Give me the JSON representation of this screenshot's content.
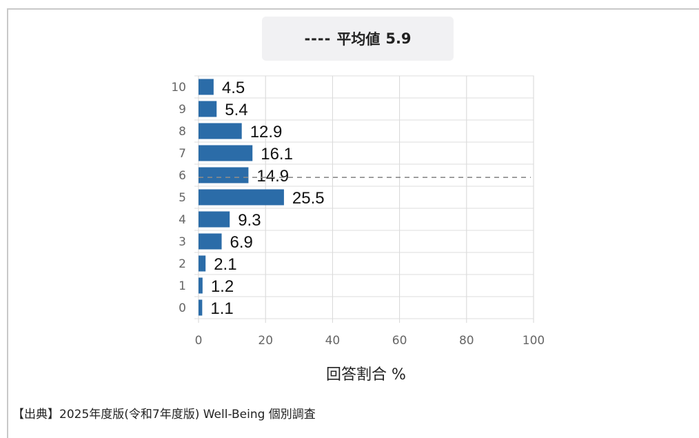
{
  "legend": {
    "dash": "----",
    "label": "平均値",
    "value": "5.9"
  },
  "chart_data": {
    "type": "bar",
    "orientation": "horizontal",
    "categories": [
      "10",
      "9",
      "8",
      "7",
      "6",
      "5",
      "4",
      "3",
      "2",
      "1",
      "0"
    ],
    "values": [
      4.5,
      5.4,
      12.9,
      16.1,
      14.9,
      25.5,
      9.3,
      6.9,
      2.1,
      1.2,
      1.1
    ],
    "xlim": [
      0,
      100
    ],
    "xticks": [
      0,
      20,
      40,
      60,
      80,
      100
    ],
    "xlabel": "回答割合 %",
    "mean_line": {
      "label": "平均値",
      "value": 5.9
    },
    "grid": true,
    "bar_color": "#2b6ca8"
  },
  "source": "【出典】2025年度版(令和7年度版) Well-Being 個別調査"
}
